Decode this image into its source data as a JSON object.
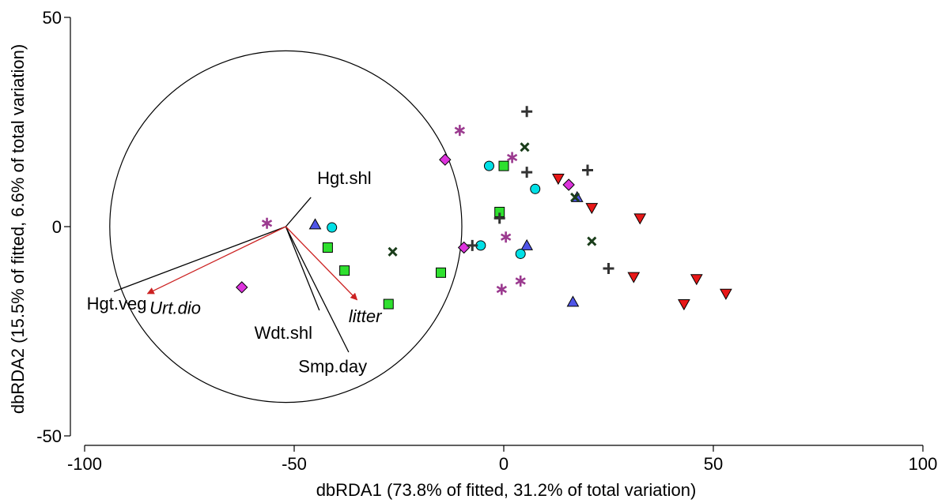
{
  "chart_data": {
    "type": "scatter",
    "xlabel": "dbRDA1 (73.8% of fitted, 31.2% of total variation)",
    "ylabel": "dbRDA2 (15.5% of fitted, 6.6% of total variation)",
    "xlim": [
      -100,
      100
    ],
    "ylim": [
      -50,
      50
    ],
    "x_ticks": [
      -100,
      -50,
      0,
      50,
      100
    ],
    "y_ticks": [
      -50,
      0,
      50
    ],
    "x_tick_labels": [
      "-100",
      "-50",
      "0",
      "50",
      "100"
    ],
    "y_tick_labels": [
      "-50",
      "0",
      "50"
    ],
    "grid": false,
    "correlation_circle": {
      "center": [
        -52,
        0
      ],
      "radius": 42
    },
    "vectors": [
      {
        "label": "Hgt.shl",
        "tip": [
          -46,
          7
        ],
        "label_at": [
          -44.5,
          11.5
        ],
        "color": "#000000",
        "italic": false,
        "arrow": false
      },
      {
        "label": "Hgt.veg",
        "tip": [
          -93,
          -15.5
        ],
        "label_at": [
          -99.5,
          -18.5
        ],
        "color": "#000000",
        "italic": false,
        "arrow": false
      },
      {
        "label": "Wdt.shl",
        "tip": [
          -44,
          -20
        ],
        "label_at": [
          -59.5,
          -25.5
        ],
        "color": "#000000",
        "italic": false,
        "arrow": false
      },
      {
        "label": "Smp.day",
        "tip": [
          -37,
          -30
        ],
        "label_at": [
          -49,
          -33.5
        ],
        "color": "#000000",
        "italic": false,
        "arrow": false
      },
      {
        "label": "Urt.dio",
        "tip": [
          -85,
          -16
        ],
        "label_at": [
          -84.5,
          -19.5
        ],
        "color": "#cc2222",
        "italic": true,
        "arrow": true
      },
      {
        "label": "litter",
        "tip": [
          -35,
          -17.5
        ],
        "label_at": [
          -37,
          -21.5
        ],
        "color": "#cc2222",
        "italic": true,
        "arrow": true
      }
    ],
    "series": [
      {
        "marker": "asterisk",
        "color": "#9b3a8f",
        "points": [
          [
            -56.5,
            0.8
          ],
          [
            -10.5,
            23
          ],
          [
            2,
            16.5
          ],
          [
            0.5,
            -2.5
          ],
          [
            -0.5,
            -15
          ],
          [
            4,
            -13
          ]
        ]
      },
      {
        "marker": "triangle-up",
        "color": "#4f55e8",
        "points": [
          [
            -45,
            0.5
          ],
          [
            5.5,
            -4.5
          ],
          [
            17.5,
            7
          ],
          [
            16.5,
            -18
          ]
        ]
      },
      {
        "marker": "circle",
        "color": "#00e0e6",
        "points": [
          [
            -41,
            -0.2
          ],
          [
            -3.5,
            14.5
          ],
          [
            7.5,
            9
          ],
          [
            -5.5,
            -4.5
          ],
          [
            4,
            -6.5
          ]
        ]
      },
      {
        "marker": "square",
        "color": "#2fe02f",
        "points": [
          [
            -42,
            -5
          ],
          [
            -38,
            -10.5
          ],
          [
            -15,
            -11
          ],
          [
            -27.5,
            -18.5
          ],
          [
            0,
            14.5
          ],
          [
            -1,
            3.5
          ]
        ]
      },
      {
        "marker": "diamond",
        "color": "#dd33dd",
        "points": [
          [
            -62.5,
            -14.5
          ],
          [
            -14,
            16
          ],
          [
            -9.5,
            -5
          ],
          [
            15.5,
            10
          ]
        ]
      },
      {
        "marker": "x",
        "color": "#1a3d1a",
        "points": [
          [
            -26.5,
            -6
          ],
          [
            5,
            19
          ],
          [
            17,
            7
          ],
          [
            21,
            -3.5
          ]
        ]
      },
      {
        "marker": "plus",
        "color": "#333333",
        "points": [
          [
            5.5,
            27.5
          ],
          [
            5.5,
            13
          ],
          [
            20,
            13.5
          ],
          [
            -1,
            2
          ],
          [
            -7.5,
            -4.5
          ],
          [
            25,
            -10
          ]
        ]
      },
      {
        "marker": "triangle-down",
        "color": "#e81818",
        "points": [
          [
            13,
            11.5
          ],
          [
            21,
            4.5
          ],
          [
            32.5,
            2
          ],
          [
            31,
            -12
          ],
          [
            46,
            -12.5
          ],
          [
            43,
            -18.5
          ],
          [
            53,
            -16
          ]
        ]
      }
    ]
  }
}
